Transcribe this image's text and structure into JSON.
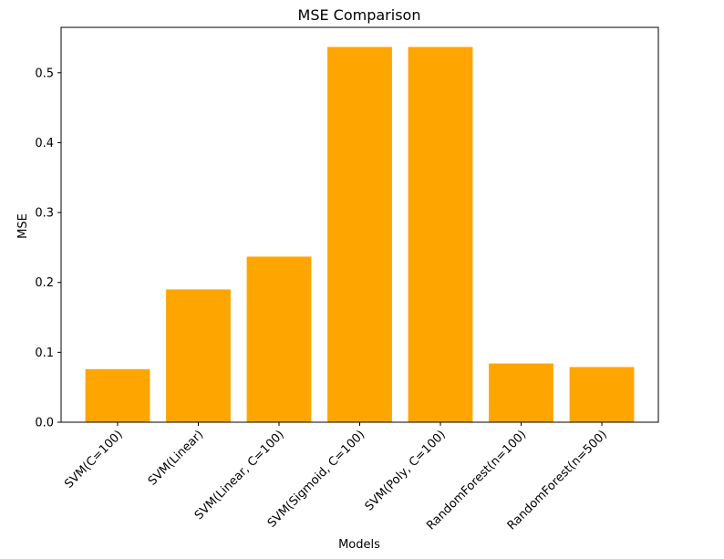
{
  "chart_data": {
    "type": "bar",
    "title": "MSE Comparison",
    "xlabel": "Models",
    "ylabel": "MSE",
    "categories": [
      "SVM(C=100)",
      "SVM(Linear)",
      "SVM(Linear, C=100)",
      "SVM(Sigmoid, C=100)",
      "SVM(Poly, C=100)",
      "RandomForest(n=100)",
      "RandomForest(n=500)"
    ],
    "values": [
      0.076,
      0.19,
      0.237,
      0.537,
      0.537,
      0.084,
      0.079
    ],
    "ylim": [
      0,
      0.565
    ],
    "yticks": [
      0.0,
      0.1,
      0.2,
      0.3,
      0.4,
      0.5
    ],
    "ytick_labels": [
      "0.0",
      "0.1",
      "0.2",
      "0.3",
      "0.4",
      "0.5"
    ],
    "grid": false,
    "colors": {
      "bar": "#FFA500",
      "axis": "#000000",
      "background": "#ffffff"
    }
  }
}
